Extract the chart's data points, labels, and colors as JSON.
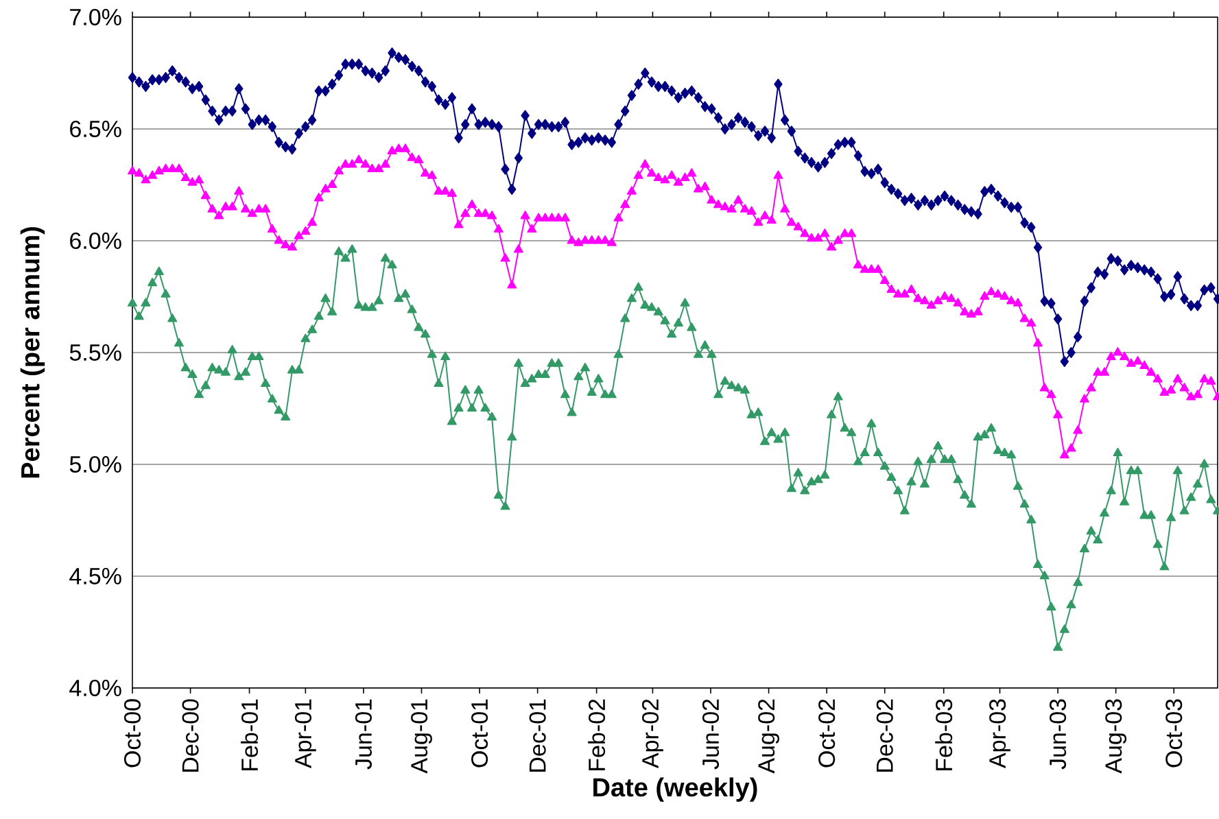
{
  "chart_data": {
    "type": "line",
    "xlabel": "Date (weekly)",
    "ylabel": "Percent (per annum)",
    "x": [
      "2000-10-01",
      "2000-10-08",
      "2000-10-15",
      "2000-10-22",
      "2000-10-29",
      "2000-11-05",
      "2000-11-12",
      "2000-11-19",
      "2000-11-26",
      "2000-12-03",
      "2000-12-10",
      "2000-12-17",
      "2000-12-24",
      "2000-12-31",
      "2001-01-07",
      "2001-01-14",
      "2001-01-21",
      "2001-01-28",
      "2001-02-04",
      "2001-02-11",
      "2001-02-18",
      "2001-02-25",
      "2001-03-04",
      "2001-03-11",
      "2001-03-18",
      "2001-03-25",
      "2001-04-01",
      "2001-04-08",
      "2001-04-15",
      "2001-04-22",
      "2001-04-29",
      "2001-05-06",
      "2001-05-13",
      "2001-05-20",
      "2001-05-27",
      "2001-06-03",
      "2001-06-10",
      "2001-06-17",
      "2001-06-24",
      "2001-07-01",
      "2001-07-08",
      "2001-07-15",
      "2001-07-22",
      "2001-07-29",
      "2001-08-05",
      "2001-08-12",
      "2001-08-19",
      "2001-08-26",
      "2001-09-02",
      "2001-09-09",
      "2001-09-16",
      "2001-09-23",
      "2001-09-30",
      "2001-10-07",
      "2001-10-14",
      "2001-10-21",
      "2001-10-28",
      "2001-11-04",
      "2001-11-11",
      "2001-11-18",
      "2001-11-25",
      "2001-12-02",
      "2001-12-09",
      "2001-12-16",
      "2001-12-23",
      "2001-12-30",
      "2002-01-06",
      "2002-01-13",
      "2002-01-20",
      "2002-01-27",
      "2002-02-03",
      "2002-02-10",
      "2002-02-17",
      "2002-02-24",
      "2002-03-03",
      "2002-03-10",
      "2002-03-17",
      "2002-03-24",
      "2002-03-31",
      "2002-04-07",
      "2002-04-14",
      "2002-04-21",
      "2002-04-28",
      "2002-05-05",
      "2002-05-12",
      "2002-05-19",
      "2002-05-26",
      "2002-06-02",
      "2002-06-09",
      "2002-06-16",
      "2002-06-23",
      "2002-06-30",
      "2002-07-07",
      "2002-07-14",
      "2002-07-21",
      "2002-07-28",
      "2002-08-04",
      "2002-08-11",
      "2002-08-18",
      "2002-08-25",
      "2002-09-01",
      "2002-09-08",
      "2002-09-15",
      "2002-09-22",
      "2002-09-29",
      "2002-10-06",
      "2002-10-13",
      "2002-10-20",
      "2002-10-27",
      "2002-11-03",
      "2002-11-10",
      "2002-11-17",
      "2002-11-24",
      "2002-12-01",
      "2002-12-08",
      "2002-12-15",
      "2002-12-22",
      "2002-12-29",
      "2003-01-05",
      "2003-01-12",
      "2003-01-19",
      "2003-01-26",
      "2003-02-02",
      "2003-02-09",
      "2003-02-16",
      "2003-02-23",
      "2003-03-02",
      "2003-03-09",
      "2003-03-16",
      "2003-03-23",
      "2003-03-30",
      "2003-04-06",
      "2003-04-13",
      "2003-04-20",
      "2003-04-27",
      "2003-05-04",
      "2003-05-11",
      "2003-05-18",
      "2003-05-25",
      "2003-06-01",
      "2003-06-08",
      "2003-06-15",
      "2003-06-22",
      "2003-06-29",
      "2003-07-06",
      "2003-07-13",
      "2003-07-20",
      "2003-07-27",
      "2003-08-03",
      "2003-08-10",
      "2003-08-17",
      "2003-08-24",
      "2003-08-31",
      "2003-09-07",
      "2003-09-14",
      "2003-09-21",
      "2003-09-28",
      "2003-10-05",
      "2003-10-12",
      "2003-10-19",
      "2003-10-26",
      "2003-11-02",
      "2003-11-09",
      "2003-11-16"
    ],
    "series": [
      {
        "color": "#000080",
        "marker": "diamond",
        "values": [
          6.73,
          6.71,
          6.69,
          6.72,
          6.72,
          6.73,
          6.76,
          6.73,
          6.71,
          6.68,
          6.69,
          6.63,
          6.58,
          6.54,
          6.58,
          6.58,
          6.68,
          6.59,
          6.52,
          6.54,
          6.54,
          6.51,
          6.44,
          6.42,
          6.41,
          6.48,
          6.51,
          6.54,
          6.67,
          6.67,
          6.7,
          6.74,
          6.79,
          6.79,
          6.79,
          6.76,
          6.75,
          6.73,
          6.76,
          6.84,
          6.82,
          6.81,
          6.78,
          6.76,
          6.71,
          6.69,
          6.63,
          6.61,
          6.64,
          6.46,
          6.52,
          6.59,
          6.52,
          6.53,
          6.52,
          6.51,
          6.32,
          6.23,
          6.37,
          6.56,
          6.48,
          6.52,
          6.52,
          6.51,
          6.51,
          6.53,
          6.43,
          6.44,
          6.46,
          6.45,
          6.46,
          6.45,
          6.44,
          6.52,
          6.58,
          6.65,
          6.7,
          6.75,
          6.71,
          6.69,
          6.69,
          6.67,
          6.64,
          6.66,
          6.67,
          6.64,
          6.6,
          6.59,
          6.55,
          6.5,
          6.52,
          6.55,
          6.53,
          6.51,
          6.47,
          6.49,
          6.46,
          6.7,
          6.54,
          6.49,
          6.4,
          6.37,
          6.35,
          6.33,
          6.35,
          6.39,
          6.43,
          6.44,
          6.44,
          6.38,
          6.31,
          6.3,
          6.32,
          6.26,
          6.23,
          6.21,
          6.18,
          6.19,
          6.16,
          6.18,
          6.16,
          6.18,
          6.2,
          6.18,
          6.16,
          6.14,
          6.13,
          6.12,
          6.22,
          6.23,
          6.2,
          6.17,
          6.15,
          6.15,
          6.08,
          6.06,
          5.97,
          5.73,
          5.72,
          5.65,
          5.46,
          5.5,
          5.57,
          5.73,
          5.79,
          5.86,
          5.85,
          5.92,
          5.91,
          5.87,
          5.89,
          5.88,
          5.87,
          5.86,
          5.83,
          5.75,
          5.76,
          5.84,
          5.74,
          5.71,
          5.71,
          5.78,
          5.79,
          5.74
        ]
      },
      {
        "color": "#ff00ff",
        "marker": "triangle",
        "values": [
          6.31,
          6.3,
          6.27,
          6.29,
          6.31,
          6.32,
          6.32,
          6.32,
          6.28,
          6.26,
          6.27,
          6.2,
          6.14,
          6.11,
          6.15,
          6.15,
          6.22,
          6.14,
          6.12,
          6.14,
          6.14,
          6.05,
          6.0,
          5.98,
          5.97,
          6.02,
          6.04,
          6.08,
          6.19,
          6.23,
          6.25,
          6.31,
          6.34,
          6.34,
          6.36,
          6.34,
          6.32,
          6.32,
          6.34,
          6.4,
          6.41,
          6.41,
          6.37,
          6.36,
          6.3,
          6.29,
          6.22,
          6.22,
          6.21,
          6.07,
          6.12,
          6.16,
          6.12,
          6.12,
          6.11,
          6.05,
          5.92,
          5.8,
          5.96,
          6.11,
          6.05,
          6.1,
          6.1,
          6.1,
          6.1,
          6.1,
          6.0,
          5.99,
          6.0,
          6.0,
          6.0,
          6.0,
          5.99,
          6.1,
          6.16,
          6.22,
          6.29,
          6.34,
          6.3,
          6.28,
          6.27,
          6.29,
          6.26,
          6.28,
          6.3,
          6.23,
          6.24,
          6.18,
          6.16,
          6.15,
          6.14,
          6.18,
          6.14,
          6.13,
          6.08,
          6.11,
          6.09,
          6.29,
          6.14,
          6.08,
          6.06,
          6.03,
          6.01,
          6.01,
          6.03,
          5.97,
          6.0,
          6.03,
          6.03,
          5.89,
          5.87,
          5.87,
          5.87,
          5.82,
          5.78,
          5.76,
          5.76,
          5.78,
          5.74,
          5.73,
          5.71,
          5.73,
          5.75,
          5.74,
          5.72,
          5.68,
          5.67,
          5.68,
          5.75,
          5.77,
          5.76,
          5.75,
          5.73,
          5.72,
          5.65,
          5.63,
          5.54,
          5.34,
          5.31,
          5.22,
          5.04,
          5.07,
          5.15,
          5.29,
          5.34,
          5.41,
          5.41,
          5.48,
          5.5,
          5.48,
          5.45,
          5.46,
          5.44,
          5.41,
          5.38,
          5.32,
          5.33,
          5.38,
          5.34,
          5.3,
          5.31,
          5.38,
          5.37,
          5.3
        ]
      },
      {
        "color": "#339966",
        "marker": "triangle",
        "values": [
          5.72,
          5.66,
          5.72,
          5.81,
          5.86,
          5.76,
          5.65,
          5.54,
          5.43,
          5.4,
          5.31,
          5.35,
          5.43,
          5.42,
          5.41,
          5.51,
          5.39,
          5.41,
          5.48,
          5.48,
          5.36,
          5.29,
          5.24,
          5.21,
          5.42,
          5.42,
          5.56,
          5.6,
          5.66,
          5.74,
          5.68,
          5.95,
          5.92,
          5.96,
          5.71,
          5.7,
          5.7,
          5.73,
          5.92,
          5.89,
          5.74,
          5.76,
          5.69,
          5.61,
          5.58,
          5.49,
          5.36,
          5.48,
          5.19,
          5.25,
          5.33,
          5.25,
          5.33,
          5.25,
          5.21,
          4.86,
          4.81,
          5.12,
          5.45,
          5.36,
          5.38,
          5.4,
          5.4,
          5.45,
          5.45,
          5.31,
          5.23,
          5.39,
          5.43,
          5.32,
          5.38,
          5.31,
          5.31,
          5.49,
          5.65,
          5.74,
          5.79,
          5.71,
          5.7,
          5.68,
          5.64,
          5.58,
          5.63,
          5.72,
          5.61,
          5.49,
          5.53,
          5.49,
          5.31,
          5.37,
          5.35,
          5.34,
          5.33,
          5.22,
          5.23,
          5.1,
          5.14,
          5.11,
          5.14,
          4.89,
          4.96,
          4.88,
          4.92,
          4.93,
          4.95,
          5.22,
          5.3,
          5.16,
          5.14,
          5.01,
          5.05,
          5.18,
          5.05,
          4.99,
          4.94,
          4.88,
          4.79,
          4.92,
          5.01,
          4.91,
          5.02,
          5.08,
          5.02,
          5.02,
          4.93,
          4.86,
          4.82,
          5.12,
          5.13,
          5.16,
          5.06,
          5.05,
          5.04,
          4.9,
          4.82,
          4.75,
          4.55,
          4.5,
          4.36,
          4.18,
          4.26,
          4.37,
          4.47,
          4.62,
          4.7,
          4.66,
          4.78,
          4.88,
          5.05,
          4.83,
          4.97,
          4.97,
          4.77,
          4.77,
          4.64,
          4.54,
          4.76,
          4.97,
          4.79,
          4.85,
          4.91,
          5.0,
          4.84,
          4.79
        ]
      }
    ],
    "xlim": [
      "2000-10-01",
      "2003-11-16"
    ],
    "xticks": [
      {
        "value": "2000-10-01",
        "label": "Oct-00"
      },
      {
        "value": "2000-12-01",
        "label": "Dec-00"
      },
      {
        "value": "2001-02-01",
        "label": "Feb-01"
      },
      {
        "value": "2001-04-01",
        "label": "Apr-01"
      },
      {
        "value": "2001-06-01",
        "label": "Jun-01"
      },
      {
        "value": "2001-08-01",
        "label": "Aug-01"
      },
      {
        "value": "2001-10-01",
        "label": "Oct-01"
      },
      {
        "value": "2001-12-01",
        "label": "Dec-01"
      },
      {
        "value": "2002-02-01",
        "label": "Feb-02"
      },
      {
        "value": "2002-04-01",
        "label": "Apr-02"
      },
      {
        "value": "2002-06-01",
        "label": "Jun-02"
      },
      {
        "value": "2002-08-01",
        "label": "Aug-02"
      },
      {
        "value": "2002-10-01",
        "label": "Oct-02"
      },
      {
        "value": "2002-12-01",
        "label": "Dec-02"
      },
      {
        "value": "2003-02-01",
        "label": "Feb-03"
      },
      {
        "value": "2003-04-01",
        "label": "Apr-03"
      },
      {
        "value": "2003-06-01",
        "label": "Jun-03"
      },
      {
        "value": "2003-08-01",
        "label": "Aug-03"
      },
      {
        "value": "2003-10-01",
        "label": "Oct-03"
      }
    ],
    "ylim": [
      4.0,
      7.0
    ],
    "yticks": [
      {
        "value": 4.0,
        "label": "4.0%"
      },
      {
        "value": 4.5,
        "label": "4.5%"
      },
      {
        "value": 5.0,
        "label": "5.0%"
      },
      {
        "value": 5.5,
        "label": "5.5%"
      },
      {
        "value": 6.0,
        "label": "6.0%"
      },
      {
        "value": 6.5,
        "label": "6.5%"
      },
      {
        "value": 7.0,
        "label": "7.0%"
      }
    ],
    "grid": "y",
    "line_style": "solid"
  }
}
